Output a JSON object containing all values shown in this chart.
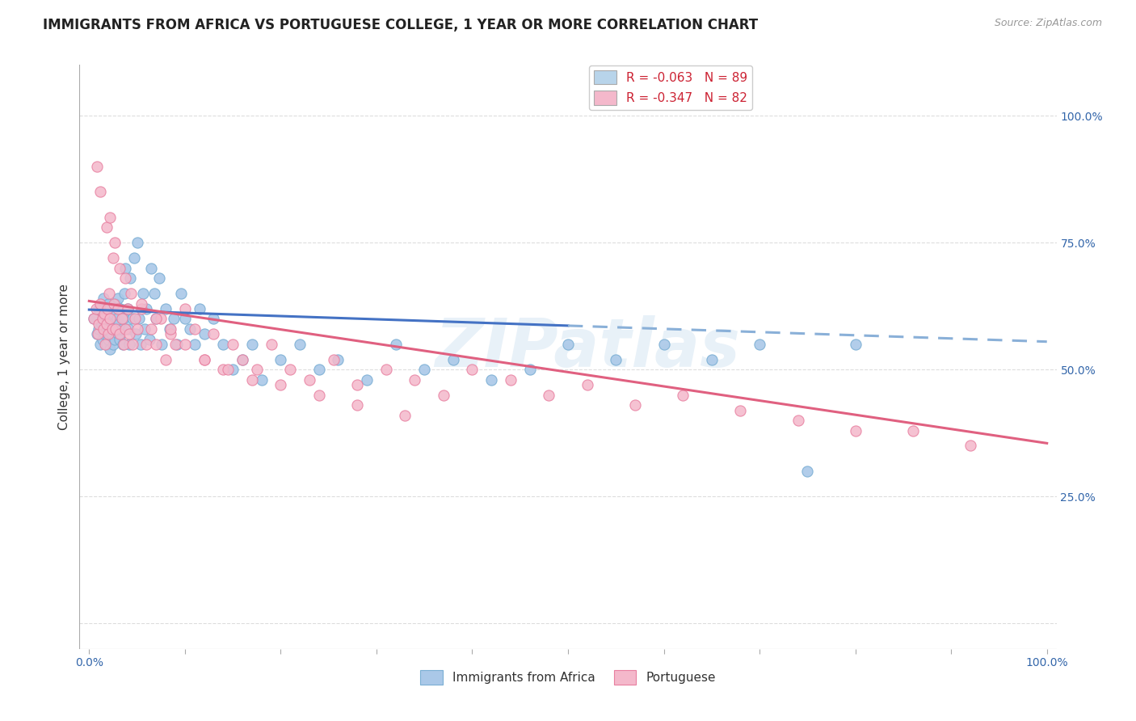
{
  "title": "IMMIGRANTS FROM AFRICA VS PORTUGUESE COLLEGE, 1 YEAR OR MORE CORRELATION CHART",
  "source": "Source: ZipAtlas.com",
  "ylabel": "College, 1 year or more",
  "watermark": "ZIPatlas",
  "legend_entries": [
    {
      "label": "R = -0.063   N = 89",
      "color": "#b8d4ea"
    },
    {
      "label": "R = -0.347   N = 82",
      "color": "#f4b8cb"
    }
  ],
  "legend_bottom": [
    {
      "label": "Immigrants from Africa",
      "color": "#b8d4ea"
    },
    {
      "label": "Portuguese",
      "color": "#f4b8cb"
    }
  ],
  "blue_R": -0.063,
  "pink_R": -0.347,
  "xlim": [
    -0.01,
    1.01
  ],
  "ylim": [
    -0.05,
    1.1
  ],
  "ytick_positions": [
    0.0,
    0.25,
    0.5,
    0.75,
    1.0
  ],
  "ytick_labels": [
    "",
    "25.0%",
    "50.0%",
    "75.0%",
    "100.0%"
  ],
  "xtick_positions": [
    0.0,
    0.1,
    0.2,
    0.3,
    0.4,
    0.5,
    0.6,
    0.7,
    0.8,
    0.9,
    1.0
  ],
  "grid_color": "#dddddd",
  "background_color": "#ffffff",
  "title_fontsize": 12,
  "axis_label_fontsize": 11,
  "tick_fontsize": 10,
  "blue_scatter_color": "#aac8e8",
  "blue_edge_color": "#7bafd4",
  "pink_scatter_color": "#f4b8cb",
  "pink_edge_color": "#e87fa0",
  "trend_blue_solid": "#4472c4",
  "trend_blue_dashed": "#8ab0d8",
  "trend_pink": "#e06080",
  "blue_scatter_x": [
    0.005,
    0.008,
    0.01,
    0.01,
    0.012,
    0.013,
    0.014,
    0.015,
    0.015,
    0.016,
    0.017,
    0.018,
    0.018,
    0.019,
    0.02,
    0.02,
    0.021,
    0.022,
    0.022,
    0.023,
    0.024,
    0.025,
    0.025,
    0.026,
    0.027,
    0.028,
    0.029,
    0.03,
    0.03,
    0.031,
    0.032,
    0.033,
    0.034,
    0.035,
    0.036,
    0.037,
    0.038,
    0.04,
    0.041,
    0.042,
    0.043,
    0.045,
    0.047,
    0.049,
    0.05,
    0.052,
    0.054,
    0.056,
    0.058,
    0.06,
    0.063,
    0.065,
    0.068,
    0.07,
    0.073,
    0.076,
    0.08,
    0.084,
    0.088,
    0.092,
    0.096,
    0.1,
    0.105,
    0.11,
    0.115,
    0.12,
    0.13,
    0.14,
    0.15,
    0.16,
    0.17,
    0.18,
    0.2,
    0.22,
    0.24,
    0.26,
    0.29,
    0.32,
    0.35,
    0.38,
    0.42,
    0.46,
    0.5,
    0.55,
    0.6,
    0.65,
    0.7,
    0.75,
    0.8
  ],
  "blue_scatter_y": [
    0.6,
    0.57,
    0.58,
    0.62,
    0.55,
    0.59,
    0.56,
    0.6,
    0.64,
    0.57,
    0.58,
    0.55,
    0.61,
    0.59,
    0.56,
    0.63,
    0.58,
    0.54,
    0.6,
    0.57,
    0.59,
    0.55,
    0.61,
    0.58,
    0.56,
    0.63,
    0.6,
    0.57,
    0.64,
    0.59,
    0.56,
    0.62,
    0.58,
    0.55,
    0.6,
    0.65,
    0.7,
    0.62,
    0.58,
    0.55,
    0.68,
    0.6,
    0.72,
    0.57,
    0.75,
    0.6,
    0.55,
    0.65,
    0.58,
    0.62,
    0.56,
    0.7,
    0.65,
    0.6,
    0.68,
    0.55,
    0.62,
    0.58,
    0.6,
    0.55,
    0.65,
    0.6,
    0.58,
    0.55,
    0.62,
    0.57,
    0.6,
    0.55,
    0.5,
    0.52,
    0.55,
    0.48,
    0.52,
    0.55,
    0.5,
    0.52,
    0.48,
    0.55,
    0.5,
    0.52,
    0.48,
    0.5,
    0.55,
    0.52,
    0.55,
    0.52,
    0.55,
    0.3,
    0.55
  ],
  "pink_scatter_x": [
    0.005,
    0.007,
    0.009,
    0.01,
    0.012,
    0.014,
    0.015,
    0.016,
    0.017,
    0.018,
    0.019,
    0.02,
    0.021,
    0.022,
    0.024,
    0.025,
    0.026,
    0.028,
    0.03,
    0.032,
    0.034,
    0.036,
    0.038,
    0.04,
    0.042,
    0.045,
    0.048,
    0.05,
    0.055,
    0.06,
    0.065,
    0.07,
    0.075,
    0.08,
    0.085,
    0.09,
    0.1,
    0.11,
    0.12,
    0.13,
    0.14,
    0.15,
    0.16,
    0.175,
    0.19,
    0.21,
    0.23,
    0.255,
    0.28,
    0.31,
    0.34,
    0.37,
    0.4,
    0.44,
    0.48,
    0.52,
    0.57,
    0.62,
    0.68,
    0.74,
    0.8,
    0.86,
    0.92,
    0.008,
    0.012,
    0.018,
    0.022,
    0.027,
    0.032,
    0.038,
    0.044,
    0.055,
    0.07,
    0.085,
    0.1,
    0.12,
    0.145,
    0.17,
    0.2,
    0.24,
    0.28,
    0.33
  ],
  "pink_scatter_y": [
    0.6,
    0.62,
    0.57,
    0.59,
    0.63,
    0.6,
    0.58,
    0.61,
    0.55,
    0.59,
    0.62,
    0.57,
    0.65,
    0.6,
    0.58,
    0.72,
    0.63,
    0.58,
    0.62,
    0.57,
    0.6,
    0.55,
    0.58,
    0.62,
    0.57,
    0.55,
    0.6,
    0.58,
    0.62,
    0.55,
    0.58,
    0.55,
    0.6,
    0.52,
    0.57,
    0.55,
    0.62,
    0.58,
    0.52,
    0.57,
    0.5,
    0.55,
    0.52,
    0.5,
    0.55,
    0.5,
    0.48,
    0.52,
    0.47,
    0.5,
    0.48,
    0.45,
    0.5,
    0.48,
    0.45,
    0.47,
    0.43,
    0.45,
    0.42,
    0.4,
    0.38,
    0.38,
    0.35,
    0.9,
    0.85,
    0.78,
    0.8,
    0.75,
    0.7,
    0.68,
    0.65,
    0.63,
    0.6,
    0.58,
    0.55,
    0.52,
    0.5,
    0.48,
    0.47,
    0.45,
    0.43,
    0.41
  ],
  "blue_line_start_x": 0.0,
  "blue_line_split_x": 0.5,
  "blue_line_end_x": 1.0,
  "blue_line_start_y": 0.618,
  "blue_line_end_y": 0.555,
  "pink_line_start_x": 0.0,
  "pink_line_end_x": 1.0,
  "pink_line_start_y": 0.635,
  "pink_line_end_y": 0.355
}
